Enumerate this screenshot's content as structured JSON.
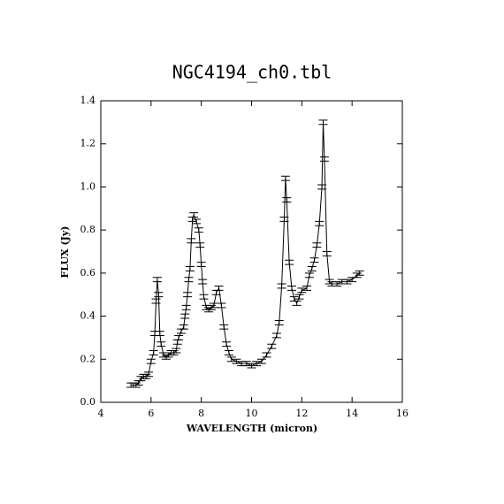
{
  "chart_data": {
    "type": "errorbar-line",
    "title": "NGC4194_ch0.tbl",
    "xlabel": "WAVELENGTH (micron)",
    "ylabel": "FLUX (Jy)",
    "color": "#000000",
    "xlim": [
      4,
      16
    ],
    "ylim": [
      0,
      1.4
    ],
    "xticks": [
      4,
      6,
      8,
      10,
      12,
      14,
      16
    ],
    "yticks": [
      {
        "value": 0,
        "label": "0.0"
      },
      0.2,
      0.4,
      0.6,
      0.8,
      {
        "value": 1,
        "label": "1.0"
      },
      1.2,
      1.4
    ],
    "x": [
      5.2,
      5.3,
      5.4,
      5.5,
      5.6,
      5.7,
      5.8,
      5.9,
      6.0,
      6.1,
      6.15,
      6.2,
      6.25,
      6.3,
      6.35,
      6.4,
      6.5,
      6.6,
      6.7,
      6.8,
      6.9,
      7.0,
      7.05,
      7.1,
      7.2,
      7.3,
      7.35,
      7.4,
      7.45,
      7.5,
      7.55,
      7.6,
      7.65,
      7.7,
      7.8,
      7.9,
      7.95,
      8.0,
      8.05,
      8.1,
      8.2,
      8.3,
      8.4,
      8.5,
      8.6,
      8.7,
      8.8,
      8.9,
      9.0,
      9.1,
      9.2,
      9.4,
      9.6,
      9.8,
      10.0,
      10.2,
      10.4,
      10.6,
      10.8,
      11.0,
      11.1,
      11.2,
      11.3,
      11.35,
      11.4,
      11.5,
      11.6,
      11.7,
      11.8,
      11.9,
      12.0,
      12.2,
      12.3,
      12.4,
      12.5,
      12.6,
      12.7,
      12.8,
      12.85,
      12.9,
      13.0,
      13.1,
      13.2,
      13.4,
      13.6,
      13.8,
      14.0,
      14.2,
      14.3
    ],
    "values": [
      0.08,
      0.08,
      0.08,
      0.09,
      0.11,
      0.12,
      0.12,
      0.13,
      0.19,
      0.23,
      0.32,
      0.47,
      0.57,
      0.5,
      0.32,
      0.27,
      0.22,
      0.21,
      0.22,
      0.23,
      0.23,
      0.24,
      0.28,
      0.3,
      0.33,
      0.35,
      0.4,
      0.44,
      0.5,
      0.57,
      0.62,
      0.75,
      0.85,
      0.87,
      0.84,
      0.8,
      0.73,
      0.64,
      0.56,
      0.49,
      0.44,
      0.43,
      0.44,
      0.45,
      0.51,
      0.53,
      0.45,
      0.35,
      0.27,
      0.23,
      0.2,
      0.19,
      0.18,
      0.18,
      0.17,
      0.18,
      0.19,
      0.22,
      0.26,
      0.31,
      0.37,
      0.54,
      0.85,
      1.04,
      0.94,
      0.65,
      0.53,
      0.48,
      0.46,
      0.49,
      0.52,
      0.53,
      0.59,
      0.62,
      0.66,
      0.73,
      0.83,
      1.0,
      1.3,
      1.13,
      0.69,
      0.56,
      0.55,
      0.55,
      0.56,
      0.56,
      0.57,
      0.59,
      0.6
    ],
    "errors": [
      0.01,
      0.01,
      0.01,
      0.01,
      0.01,
      0.01,
      0.01,
      0.01,
      0.01,
      0.01,
      0.01,
      0.01,
      0.01,
      0.01,
      0.01,
      0.01,
      0.01,
      0.01,
      0.01,
      0.01,
      0.01,
      0.01,
      0.01,
      0.01,
      0.01,
      0.01,
      0.01,
      0.01,
      0.01,
      0.01,
      0.01,
      0.01,
      0.01,
      0.01,
      0.01,
      0.01,
      0.01,
      0.01,
      0.01,
      0.01,
      0.01,
      0.01,
      0.01,
      0.01,
      0.01,
      0.01,
      0.01,
      0.01,
      0.01,
      0.01,
      0.01,
      0.01,
      0.01,
      0.01,
      0.01,
      0.01,
      0.01,
      0.01,
      0.01,
      0.01,
      0.01,
      0.01,
      0.01,
      0.01,
      0.01,
      0.01,
      0.01,
      0.01,
      0.01,
      0.01,
      0.01,
      0.01,
      0.01,
      0.01,
      0.01,
      0.01,
      0.01,
      0.01,
      0.01,
      0.01,
      0.01,
      0.01,
      0.01,
      0.01,
      0.01,
      0.01,
      0.01,
      0.01,
      0.01
    ]
  }
}
